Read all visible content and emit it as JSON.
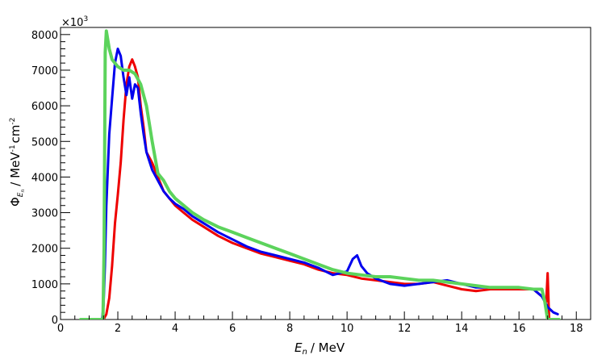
{
  "chart_data": {
    "type": "line",
    "xlabel_symbol": "E",
    "xlabel_sub": "n",
    "xlabel_unit": "/  MeV",
    "ylabel_symbol": "Φ",
    "ylabel_sub": "E",
    "ylabel_subsub": "n",
    "ylabel_unit": "/  MeV",
    "ylabel_unit_exp1": "-1",
    "ylabel_unit_cm": "cm",
    "ylabel_unit_exp2": "-2",
    "y_multiplier_base": "×10",
    "y_multiplier_exp": "3",
    "xlim": [
      0,
      18.5
    ],
    "ylim": [
      0,
      8200
    ],
    "x_ticks": [
      0,
      2,
      4,
      6,
      8,
      10,
      12,
      14,
      16,
      18
    ],
    "y_ticks": [
      0,
      1000,
      2000,
      3000,
      4000,
      5000,
      6000,
      7000,
      8000
    ],
    "grid": false,
    "legend": "none",
    "colors": {
      "blue": "#0000ee",
      "red": "#ee0000",
      "green": "#5cd35c"
    },
    "series": [
      {
        "color": "#ee0000",
        "x": [
          1.0,
          1.5,
          1.6,
          1.7,
          1.8,
          1.9,
          2.0,
          2.1,
          2.2,
          2.3,
          2.4,
          2.5,
          2.6,
          2.7,
          2.8,
          2.9,
          3.0,
          3.2,
          3.4,
          3.6,
          3.8,
          4.0,
          4.3,
          4.6,
          5.0,
          5.5,
          6.0,
          6.5,
          7.0,
          7.5,
          8.0,
          8.5,
          9.0,
          9.5,
          10.0,
          10.5,
          11.0,
          11.5,
          12.0,
          12.5,
          13.0,
          13.5,
          14.0,
          14.5,
          15.0,
          15.5,
          16.0,
          16.5,
          16.8,
          16.95,
          17.0,
          17.05
        ],
        "y": [
          0,
          0,
          150,
          600,
          1500,
          2700,
          3500,
          4400,
          5600,
          6600,
          7100,
          7300,
          7100,
          6800,
          6000,
          5400,
          4700,
          4400,
          4000,
          3600,
          3400,
          3200,
          3000,
          2800,
          2600,
          2350,
          2150,
          2000,
          1850,
          1750,
          1650,
          1550,
          1400,
          1300,
          1250,
          1150,
          1100,
          1050,
          1000,
          1000,
          1050,
          950,
          850,
          800,
          850,
          850,
          850,
          850,
          650,
          500,
          1300,
          50
        ]
      },
      {
        "color": "#0000ee",
        "x": [
          1.45,
          1.5,
          1.55,
          1.6,
          1.7,
          1.8,
          1.9,
          2.0,
          2.1,
          2.2,
          2.3,
          2.4,
          2.5,
          2.6,
          2.7,
          2.8,
          2.9,
          3.0,
          3.2,
          3.4,
          3.6,
          3.8,
          4.0,
          4.3,
          4.6,
          5.0,
          5.5,
          6.0,
          6.5,
          7.0,
          7.5,
          8.0,
          8.5,
          9.0,
          9.5,
          10.0,
          10.2,
          10.35,
          10.5,
          10.7,
          11.0,
          11.5,
          12.0,
          12.5,
          13.0,
          13.5,
          14.0,
          14.5,
          15.0,
          15.5,
          16.0,
          16.5,
          16.8,
          17.0,
          17.2,
          17.35
        ],
        "y": [
          0,
          400,
          1500,
          3200,
          5200,
          6200,
          7200,
          7600,
          7400,
          6800,
          6300,
          6800,
          6200,
          6600,
          6500,
          5800,
          5200,
          4700,
          4200,
          3900,
          3600,
          3400,
          3250,
          3100,
          2900,
          2700,
          2450,
          2250,
          2050,
          1900,
          1800,
          1700,
          1600,
          1450,
          1250,
          1350,
          1700,
          1800,
          1500,
          1300,
          1150,
          1000,
          950,
          1000,
          1050,
          1100,
          1000,
          900,
          900,
          900,
          900,
          850,
          650,
          350,
          200,
          150
        ]
      },
      {
        "color": "#5cd35c",
        "x": [
          0.7,
          1.48,
          1.52,
          1.56,
          1.6,
          1.7,
          1.8,
          2.0,
          2.2,
          2.4,
          2.6,
          2.8,
          3.0,
          3.2,
          3.4,
          3.6,
          3.8,
          4.0,
          4.3,
          4.6,
          5.0,
          5.5,
          6.0,
          6.5,
          7.0,
          7.5,
          8.0,
          8.5,
          9.0,
          9.5,
          10.0,
          10.5,
          11.0,
          11.5,
          12.0,
          12.5,
          13.0,
          13.5,
          14.0,
          14.5,
          15.0,
          15.5,
          16.0,
          16.5,
          16.8,
          16.9,
          17.0,
          17.2,
          17.4
        ],
        "y": [
          0,
          0,
          2000,
          7500,
          8100,
          7600,
          7300,
          7100,
          7000,
          7000,
          6900,
          6600,
          6000,
          5000,
          4100,
          3900,
          3600,
          3400,
          3200,
          3000,
          2800,
          2600,
          2450,
          2300,
          2150,
          2000,
          1850,
          1700,
          1550,
          1400,
          1300,
          1250,
          1200,
          1200,
          1150,
          1100,
          1100,
          1050,
          1000,
          950,
          900,
          900,
          900,
          850,
          850,
          500,
          0,
          0,
          0
        ]
      }
    ]
  }
}
